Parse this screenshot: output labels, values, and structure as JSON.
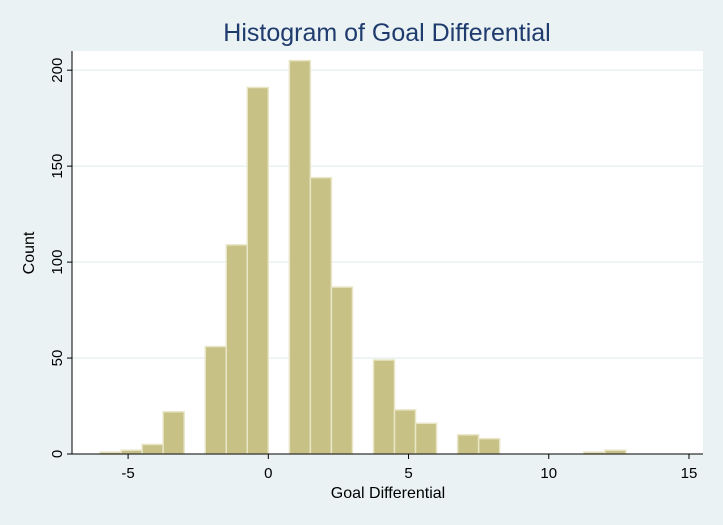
{
  "chart_data": {
    "type": "bar",
    "title": "Histogram of Goal Differential",
    "xlabel": "Goal Differential",
    "ylabel": "Count",
    "bin_width": 0.75,
    "xlim": [
      -7,
      15.5
    ],
    "ylim": [
      0,
      210
    ],
    "xticks": [
      -5,
      0,
      5,
      10,
      15
    ],
    "yticks": [
      0,
      50,
      100,
      150,
      200
    ],
    "grid": true,
    "bins": [
      {
        "x0": -6.0,
        "count": 1
      },
      {
        "x0": -5.25,
        "count": 2
      },
      {
        "x0": -4.5,
        "count": 5
      },
      {
        "x0": -3.75,
        "count": 22
      },
      {
        "x0": -2.25,
        "count": 56
      },
      {
        "x0": -1.5,
        "count": 109
      },
      {
        "x0": -0.75,
        "count": 191
      },
      {
        "x0": 0.75,
        "count": 205
      },
      {
        "x0": 1.5,
        "count": 144
      },
      {
        "x0": 2.25,
        "count": 87
      },
      {
        "x0": 3.75,
        "count": 49
      },
      {
        "x0": 4.5,
        "count": 23
      },
      {
        "x0": 5.25,
        "count": 16
      },
      {
        "x0": 6.75,
        "count": 10
      },
      {
        "x0": 7.5,
        "count": 8
      },
      {
        "x0": 11.25,
        "count": 1
      },
      {
        "x0": 12.0,
        "count": 2
      }
    ]
  },
  "colors": {
    "background": "#eaf2f3",
    "plot_area": "#ffffff",
    "bar_fill": "#c8c185",
    "title": "#1f3b6e"
  }
}
